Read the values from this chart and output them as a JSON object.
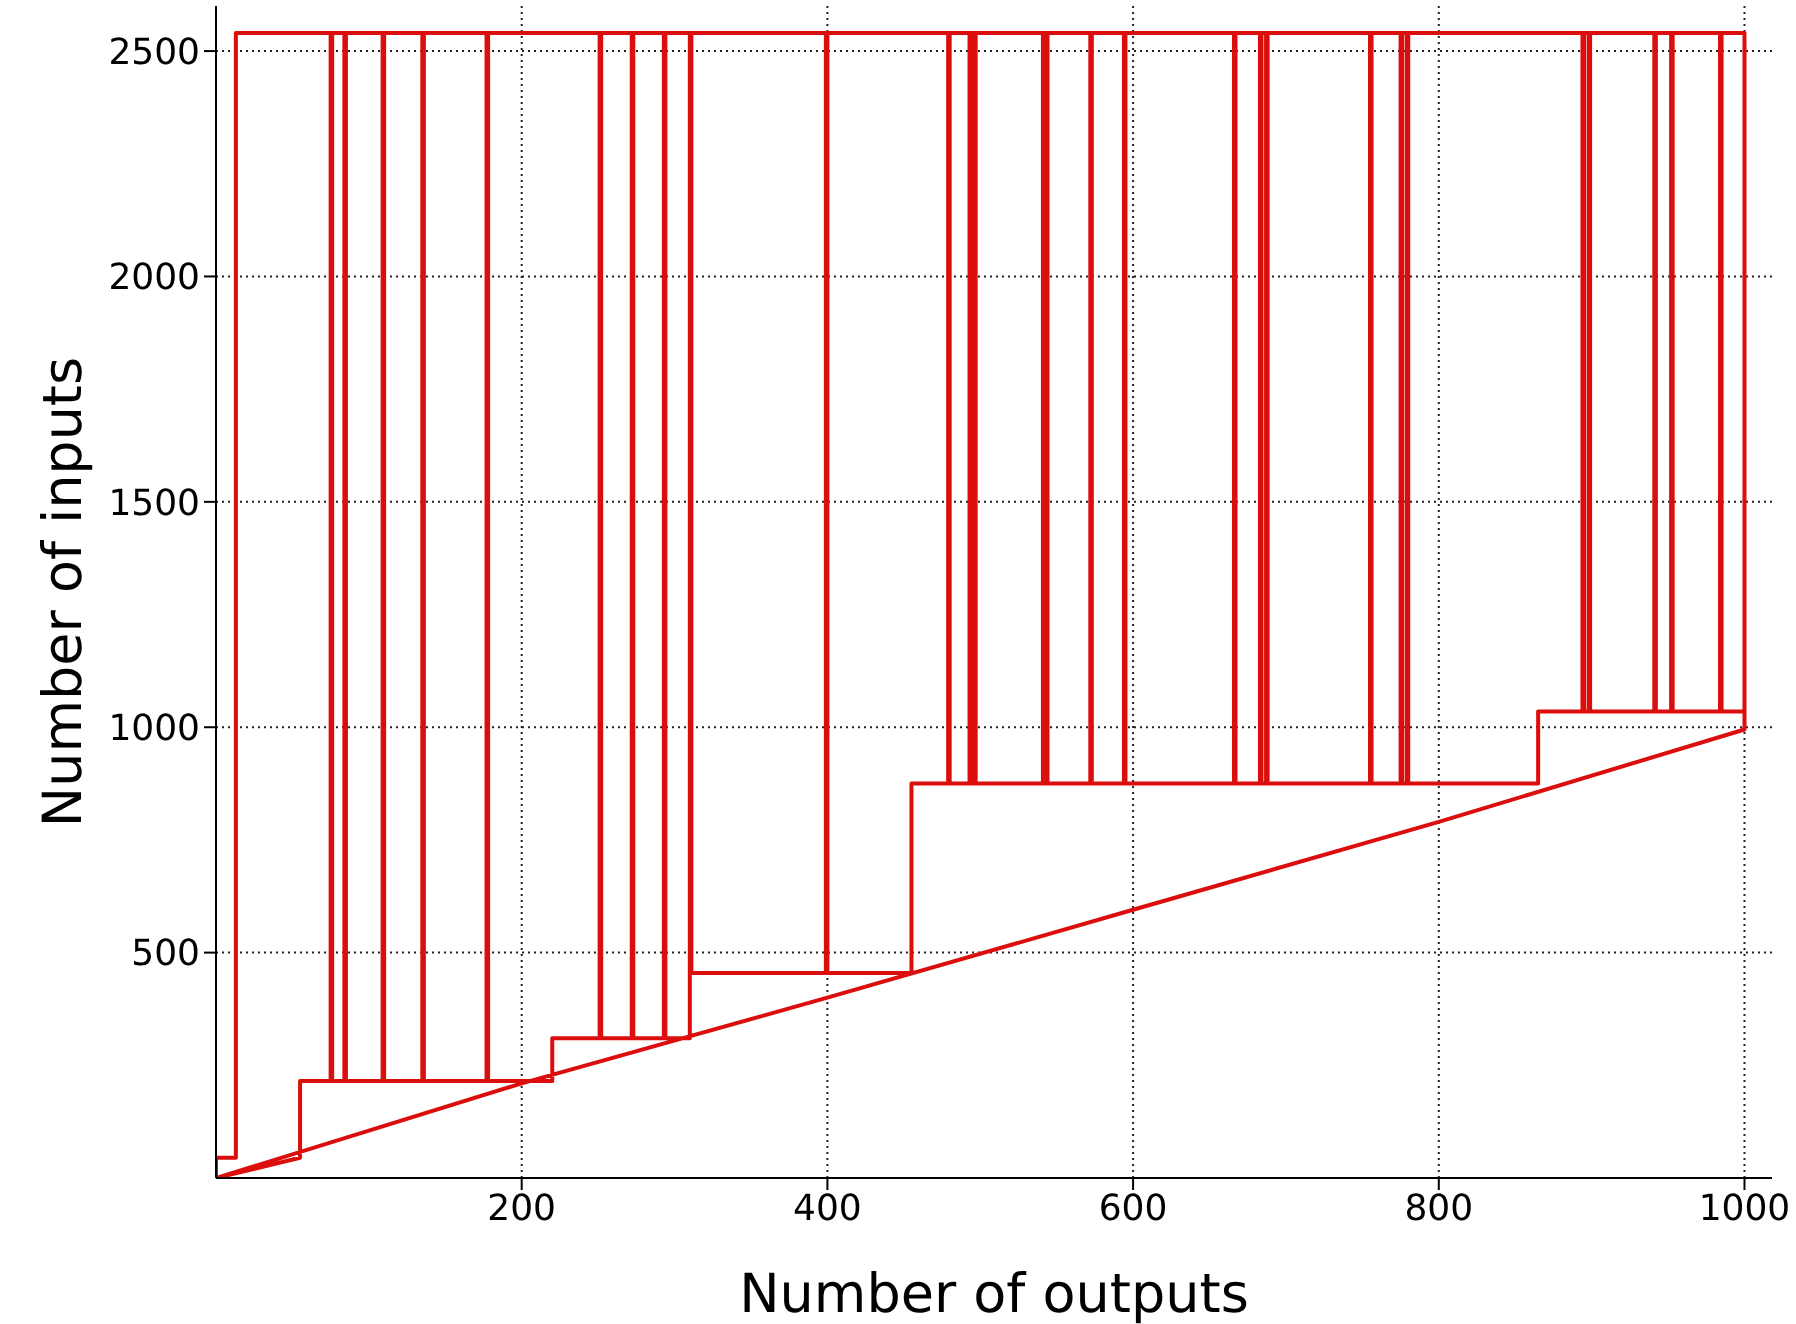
{
  "chart_data": {
    "type": "line",
    "xlabel": "Number of outputs",
    "ylabel": "Number of inputs",
    "xlim": [
      0,
      1018
    ],
    "ylim": [
      0,
      2600
    ],
    "xticks": [
      200,
      400,
      600,
      800,
      1000
    ],
    "yticks": [
      500,
      1000,
      1500,
      2000,
      2500
    ],
    "grid": true,
    "marker": "none",
    "line_style": "solid",
    "series": [
      {
        "color": "#dc0d0d",
        "x": [
          0,
          0,
          13,
          13,
          75,
          75,
          76,
          76,
          84,
          84,
          85,
          85,
          109,
          109,
          110,
          110,
          135,
          135,
          136,
          136,
          177,
          177,
          178,
          178,
          251,
          251,
          252,
          252,
          272,
          272,
          273,
          273,
          293,
          293,
          294,
          294,
          310,
          310,
          311,
          311,
          399,
          399,
          400,
          400,
          479,
          479,
          480,
          480,
          493,
          493,
          494,
          494,
          496,
          496,
          497,
          497,
          541,
          541,
          542,
          542,
          543,
          543,
          544,
          544,
          572,
          572,
          573,
          573,
          594,
          594,
          595,
          595,
          666,
          666,
          667,
          667,
          683,
          683,
          684,
          684,
          687,
          687,
          688,
          688,
          755,
          755,
          756,
          756,
          775,
          775,
          776,
          776,
          779,
          779,
          780,
          780,
          894,
          894,
          895,
          895,
          898,
          898,
          899,
          899,
          941,
          941,
          942,
          942,
          952,
          952,
          953,
          953,
          984,
          984,
          985,
          985,
          1000,
          1000,
          865,
          865,
          455,
          455,
          310,
          310,
          220,
          220,
          55,
          55,
          0,
          200,
          400,
          600,
          800,
          1000,
          1000
        ],
        "values": [
          5,
          45,
          45,
          2540,
          2540,
          215,
          215,
          2540,
          2540,
          215,
          215,
          2540,
          2540,
          215,
          215,
          2540,
          2540,
          215,
          215,
          2540,
          2540,
          215,
          215,
          2540,
          2540,
          310,
          310,
          2540,
          2540,
          310,
          310,
          2540,
          2540,
          310,
          310,
          2540,
          2540,
          455,
          455,
          2540,
          2540,
          455,
          455,
          2540,
          2540,
          875,
          875,
          2540,
          2540,
          875,
          875,
          2540,
          2540,
          875,
          875,
          2540,
          2540,
          875,
          875,
          2540,
          2540,
          875,
          875,
          2540,
          2540,
          875,
          875,
          2540,
          2540,
          875,
          875,
          2540,
          2540,
          875,
          875,
          2540,
          2540,
          875,
          875,
          2540,
          2540,
          875,
          875,
          2540,
          2540,
          875,
          875,
          2540,
          2540,
          875,
          875,
          2540,
          2540,
          875,
          875,
          2540,
          2540,
          1035,
          1035,
          2540,
          2540,
          1035,
          1035,
          2540,
          2540,
          1035,
          1035,
          2540,
          2540,
          1035,
          1035,
          2540,
          2540,
          1035,
          1035,
          2540,
          2540,
          1035,
          1035,
          875,
          875,
          455,
          455,
          310,
          310,
          215,
          215,
          45,
          0,
          210,
          400,
          595,
          790,
          995,
          1035
        ]
      }
    ]
  }
}
